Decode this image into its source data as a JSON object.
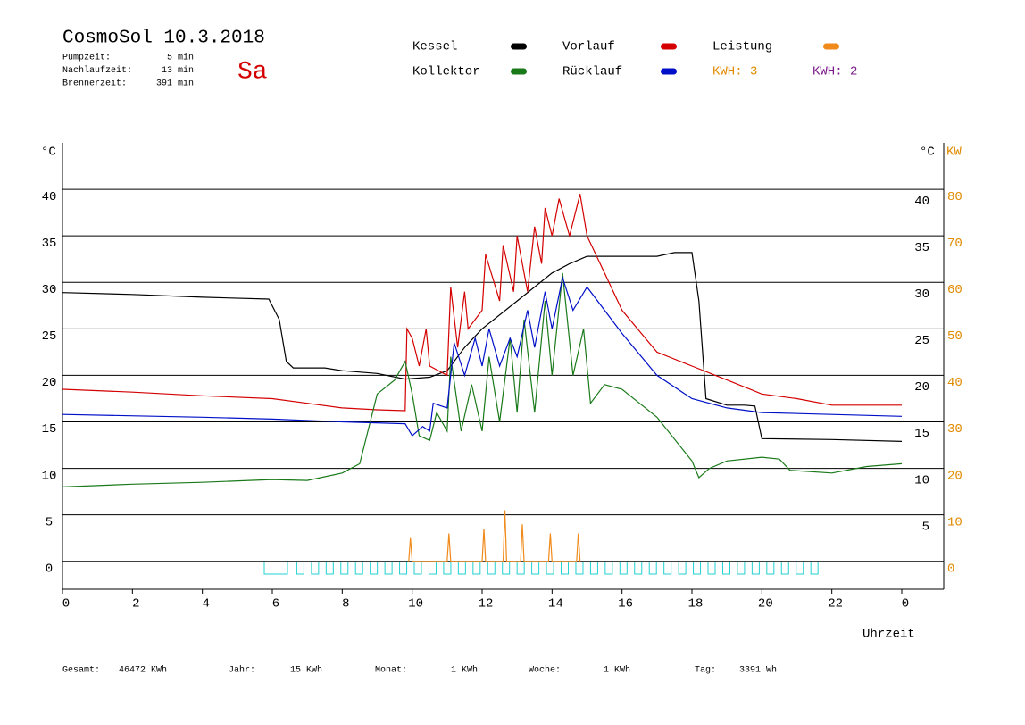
{
  "chart_data": {
    "type": "line",
    "title": "CosmoSol 10.3.2018",
    "day": "Sa",
    "info": [
      {
        "label": "Pumpzeit:",
        "value": "5 min"
      },
      {
        "label": "Nachlaufzeit:",
        "value": "13 min"
      },
      {
        "label": "Brennerzeit:",
        "value": "391 min"
      }
    ],
    "kwh_labels": [
      {
        "text": "KWH: 3",
        "color": "#e08a00"
      },
      {
        "text": "KWH: 2",
        "color": "#7a1a8a"
      }
    ],
    "y_unit": "°C",
    "y2_unit": "KW",
    "x_label": "Uhrzeit",
    "xlim": [
      0,
      25.2
    ],
    "xticks": [
      0,
      2,
      4,
      6,
      8,
      10,
      12,
      14,
      16,
      18,
      20,
      22,
      {
        "value": 24,
        "label": "0"
      }
    ],
    "ylim": [
      -3,
      45
    ],
    "yticks": [
      0,
      5,
      10,
      15,
      20,
      25,
      30,
      35,
      40
    ],
    "y2lim": [
      -6,
      90
    ],
    "y2ticks": [
      0,
      10,
      20,
      30,
      40,
      50,
      60,
      70,
      80
    ],
    "grid": true,
    "series": [
      {
        "name": "Kessel",
        "color": "#000000",
        "x": [
          0,
          2,
          4,
          5.9,
          6.2,
          6.4,
          6.6,
          7.5,
          8,
          9,
          9.8,
          10.5,
          11,
          11.5,
          12,
          13,
          14,
          14.5,
          15,
          17,
          17.5,
          18,
          18.2,
          18.4,
          19,
          19.5,
          19.8,
          20,
          22,
          24
        ],
        "values": [
          28.9,
          28.7,
          28.4,
          28.2,
          26,
          21.5,
          20.8,
          20.8,
          20.5,
          20.2,
          19.6,
          19.8,
          20.5,
          23,
          25,
          28,
          31,
          32,
          32.8,
          32.8,
          33.2,
          33.2,
          28,
          17.5,
          16.8,
          16.8,
          16.7,
          13.2,
          13.1,
          12.9
        ]
      },
      {
        "name": "Vorlauf",
        "color": "#d40000",
        "x": [
          0,
          2,
          4,
          6,
          7,
          8,
          9,
          9.8,
          9.85,
          10,
          10.2,
          10.4,
          10.5,
          11,
          11.1,
          11.3,
          11.5,
          11.6,
          12,
          12.1,
          12.5,
          12.6,
          12.9,
          13,
          13.3,
          13.5,
          13.7,
          13.8,
          14,
          14.2,
          14.5,
          14.8,
          15,
          15.5,
          16,
          17,
          18,
          19,
          20,
          21,
          22,
          24
        ],
        "values": [
          18.5,
          18.2,
          17.8,
          17.5,
          17,
          16.5,
          16.3,
          16.2,
          25,
          24,
          21,
          25,
          21,
          20,
          29.5,
          23,
          29,
          25,
          27,
          33,
          28,
          34,
          29,
          35,
          29,
          36,
          32,
          38,
          35,
          39,
          35,
          39.5,
          35,
          31,
          27,
          22.5,
          21,
          19.5,
          18,
          17.5,
          16.8,
          16.8
        ]
      },
      {
        "name": "Leistung",
        "color": "#f08a1a",
        "axis": "y2",
        "x": [
          9.9,
          9.95,
          10,
          11,
          11.05,
          11.1,
          12,
          12.05,
          12.1,
          12.6,
          12.65,
          12.7,
          13.1,
          13.15,
          13.2,
          13.9,
          13.95,
          14,
          14.7,
          14.75,
          14.8
        ],
        "values": [
          0,
          5,
          0,
          0,
          6,
          0,
          0,
          7,
          0,
          0,
          11,
          0,
          0,
          8,
          0,
          0,
          6,
          0,
          0,
          6,
          0
        ]
      },
      {
        "name": "Kollektor",
        "color": "#1a7a1a",
        "x": [
          0,
          2,
          4,
          6,
          7,
          8,
          8.5,
          9,
          9.5,
          9.8,
          10,
          10.2,
          10.5,
          10.7,
          11,
          11.1,
          11.4,
          11.7,
          12,
          12.2,
          12.5,
          12.8,
          13,
          13.2,
          13.5,
          13.8,
          14,
          14.3,
          14.6,
          14.9,
          15.1,
          15.5,
          16,
          16.5,
          17,
          18,
          18.2,
          18.5,
          19,
          20,
          20.5,
          20.8,
          22,
          23,
          24
        ],
        "values": [
          8,
          8.3,
          8.5,
          8.8,
          8.7,
          9.5,
          10.5,
          18,
          19.5,
          21.5,
          18,
          13.5,
          13,
          16,
          14,
          22,
          14,
          19,
          14,
          22,
          15,
          24,
          16,
          26,
          16,
          28,
          20,
          31,
          20,
          25,
          17,
          19,
          18.5,
          17,
          15.5,
          10.8,
          9,
          10,
          10.8,
          11.2,
          11,
          9.8,
          9.5,
          10.2,
          10.5
        ]
      },
      {
        "name": "Rücklauf",
        "color": "#0010c8",
        "x": [
          0,
          4,
          6,
          8,
          9.8,
          10,
          10.3,
          10.5,
          10.6,
          11,
          11.2,
          11.5,
          11.8,
          12,
          12.2,
          12.5,
          12.8,
          13,
          13.3,
          13.5,
          13.8,
          14,
          14.3,
          14.6,
          15,
          16,
          17,
          18,
          19,
          20,
          24
        ],
        "values": [
          15.8,
          15.5,
          15.3,
          15,
          14.8,
          13.5,
          14.5,
          14,
          17,
          16.5,
          23.5,
          20,
          24,
          21,
          25,
          21,
          24,
          22,
          27,
          23,
          29,
          25,
          30.5,
          27,
          29.5,
          24.5,
          20,
          17.5,
          16.5,
          16,
          15.6
        ]
      }
    ],
    "totals": [
      {
        "label": "Gesamt:",
        "value": "46472 KWh"
      },
      {
        "label": "Jahr:",
        "value": "15 KWh"
      },
      {
        "label": "Monat:",
        "value": "1 KWh"
      },
      {
        "label": "Woche:",
        "value": "1 KWh"
      },
      {
        "label": "Tag:",
        "value": "3391 Wh"
      }
    ]
  }
}
